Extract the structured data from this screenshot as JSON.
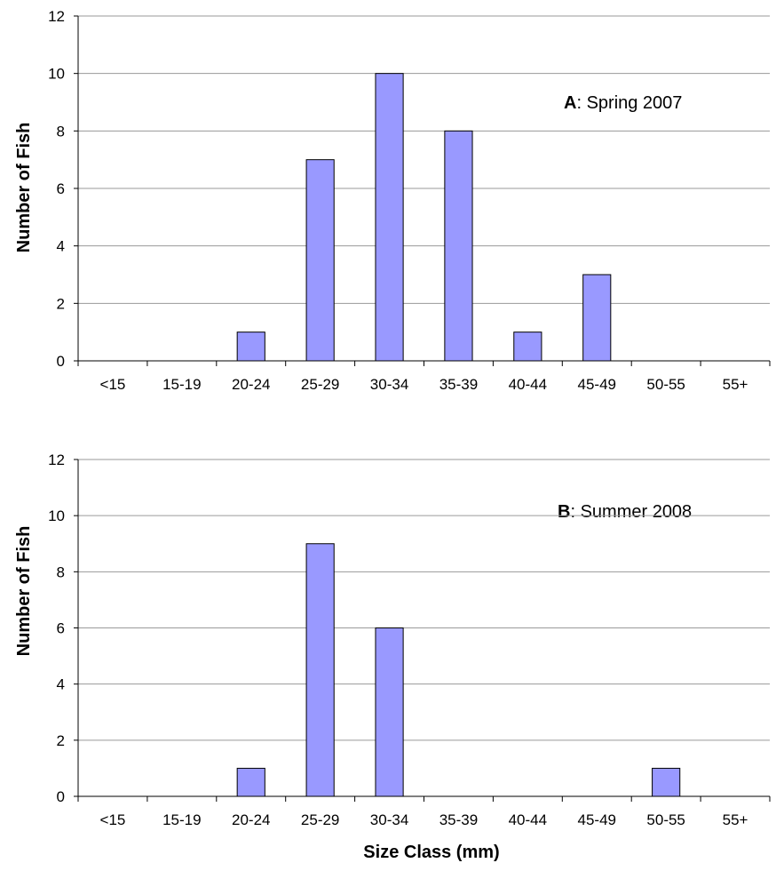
{
  "figure": {
    "xlabel": "Size Class (mm)"
  },
  "chart_data": [
    {
      "type": "bar",
      "panel_letter": "A",
      "panel_text": ": Spring 2007",
      "ylabel": "Number of Fish",
      "categories": [
        "<15",
        "15-19",
        "20-24",
        "25-29",
        "30-34",
        "35-39",
        "40-44",
        "45-49",
        "50-55",
        "55+"
      ],
      "values": [
        0,
        0,
        1,
        7,
        10,
        8,
        1,
        3,
        0,
        0
      ],
      "ylim": [
        0,
        12
      ],
      "yticks": [
        0,
        2,
        4,
        6,
        8,
        10,
        12
      ],
      "grid": true,
      "bar_color": "#9999ff"
    },
    {
      "type": "bar",
      "panel_letter": "B",
      "panel_text": ": Summer 2008",
      "ylabel": "Number of Fish",
      "categories": [
        "<15",
        "15-19",
        "20-24",
        "25-29",
        "30-34",
        "35-39",
        "40-44",
        "45-49",
        "50-55",
        "55+"
      ],
      "values": [
        0,
        0,
        1,
        9,
        6,
        0,
        0,
        0,
        1,
        0
      ],
      "ylim": [
        0,
        12
      ],
      "yticks": [
        0,
        2,
        4,
        6,
        8,
        10,
        12
      ],
      "grid": true,
      "bar_color": "#9999ff"
    }
  ]
}
